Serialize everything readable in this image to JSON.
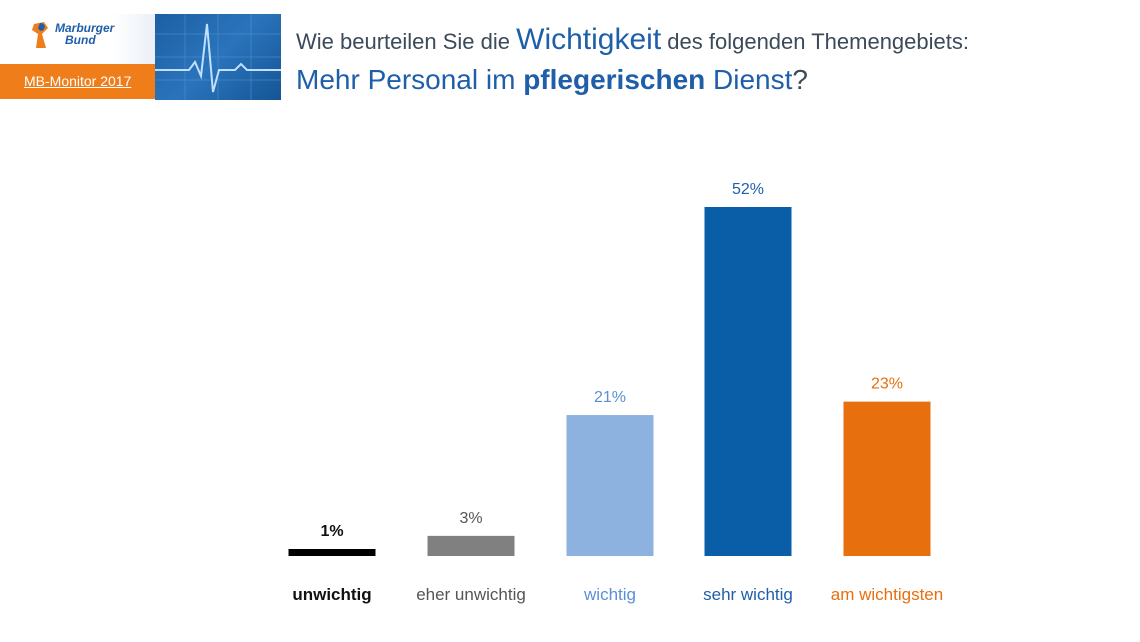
{
  "header": {
    "logo_line1": "Marburger",
    "logo_line2": "Bund",
    "monitor_label": "MB-Monitor 2017",
    "question_part1": "Wie beurteilen Sie die ",
    "question_highlight": "Wichtigkeit",
    "question_part2": " des folgenden Themengebiets:",
    "topic_part1": "Mehr Personal im ",
    "topic_highlight": "pflegerischen",
    "topic_part2": " Dienst",
    "topic_end": "?"
  },
  "colors": {
    "brand_blue": "#1f5fa9",
    "brand_orange": "#ef7d1a"
  },
  "chart_data": {
    "type": "bar",
    "categories": [
      "unwichtig",
      "eher unwichtig",
      "wichtig",
      "sehr wichtig",
      "am wichtigsten"
    ],
    "values": [
      1,
      3,
      21,
      52,
      23
    ],
    "value_labels": [
      "1%",
      "3%",
      "21%",
      "52%",
      "23%"
    ],
    "colors": [
      "#000000",
      "#808080",
      "#8db2e0",
      "#0a5ea8",
      "#e76f0e"
    ],
    "label_colors": [
      "#111111",
      "#555555",
      "#5b8fd6",
      "#1f5fa9",
      "#e76f0e"
    ],
    "grid": false,
    "ylim": [
      0,
      52
    ]
  }
}
